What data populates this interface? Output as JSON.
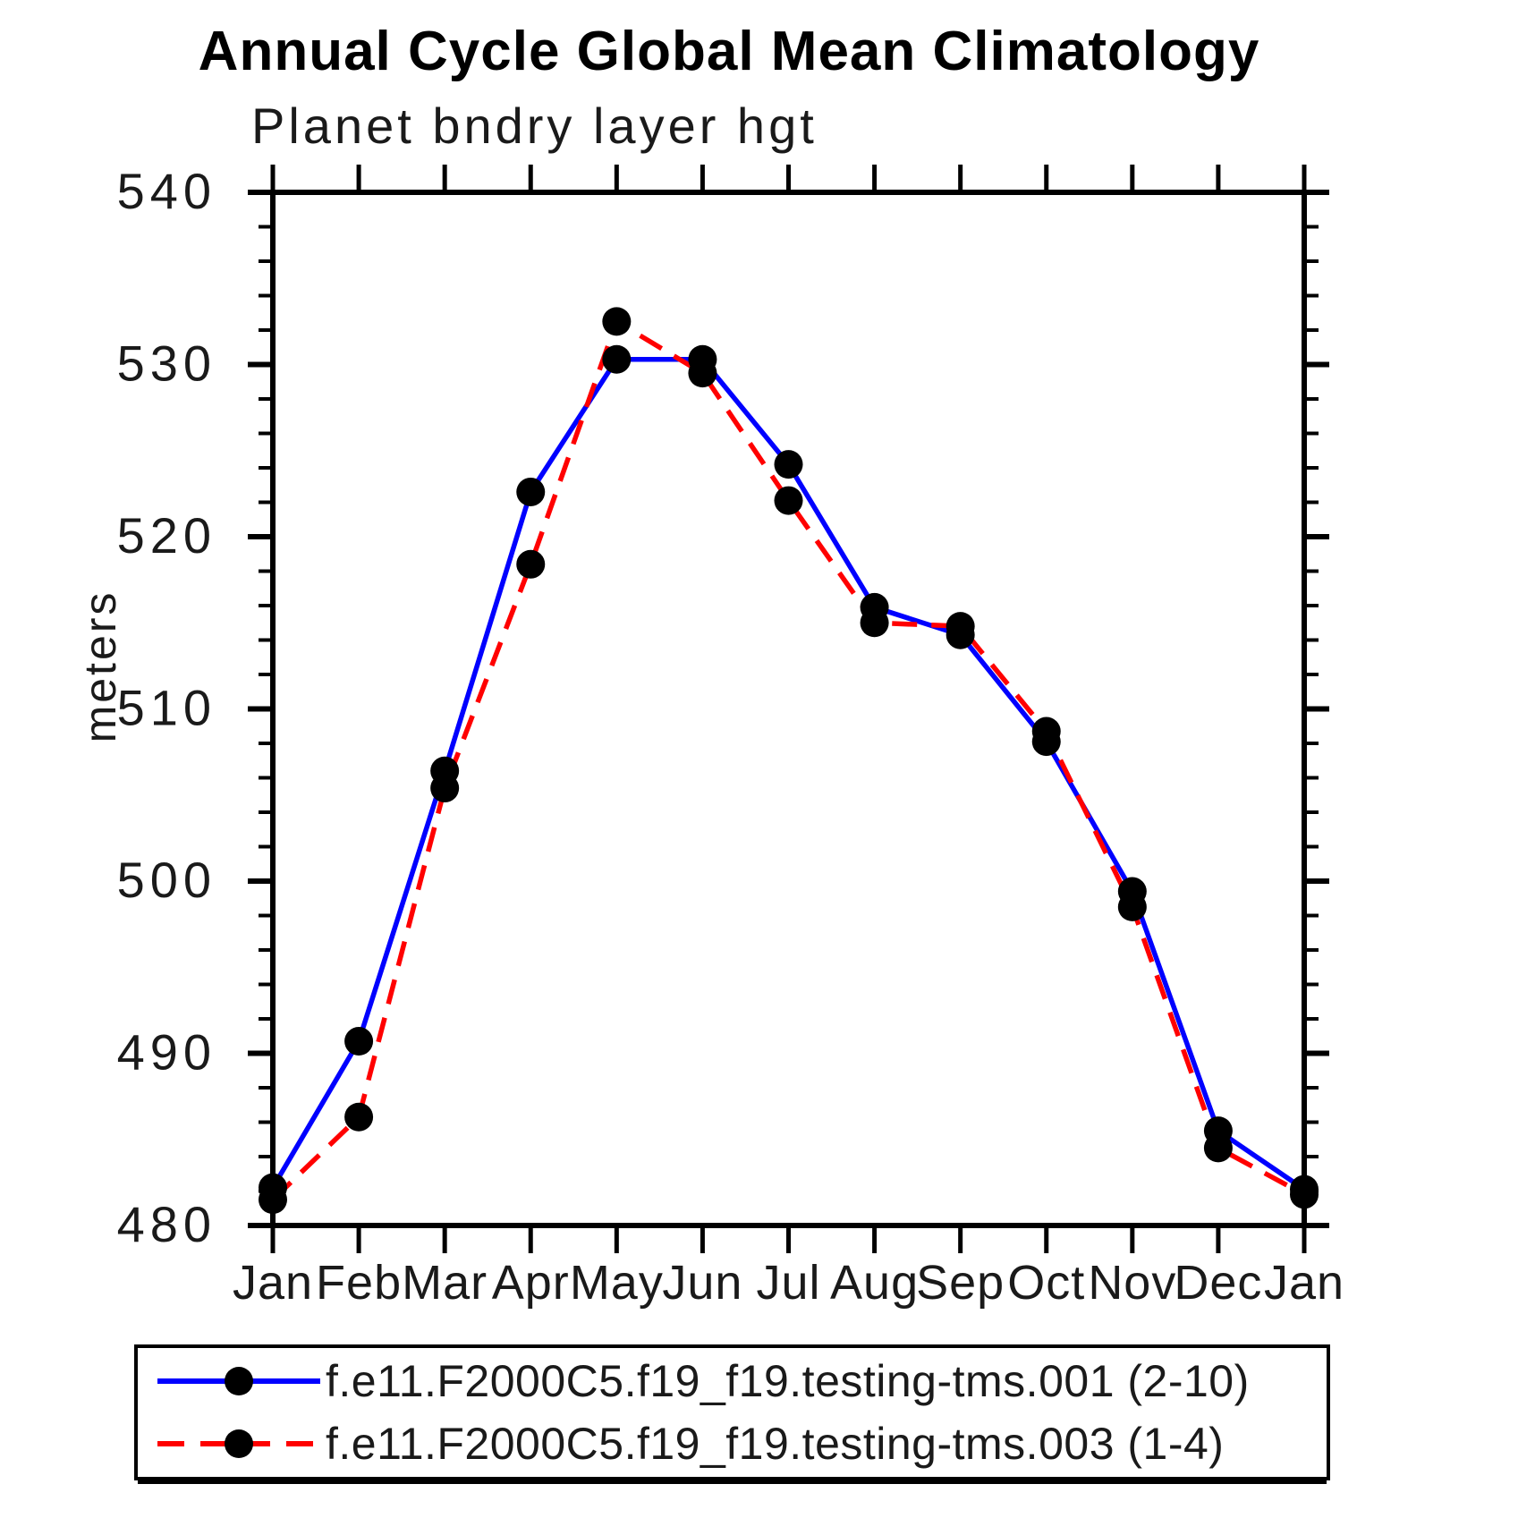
{
  "chart_data": {
    "type": "line",
    "title": "Annual Cycle Global Mean Climatology",
    "subtitle": "Planet bndry layer hgt",
    "ylabel": "meters",
    "ylim": [
      480,
      540
    ],
    "y_major_tick_step": 10,
    "y_minor_tick_step": 2,
    "y_tick_labels": [
      "480",
      "490",
      "500",
      "510",
      "520",
      "530",
      "540"
    ],
    "categories": [
      "Jan",
      "Feb",
      "Mar",
      "Apr",
      "May",
      "Jun",
      "Jul",
      "Aug",
      "Sep",
      "Oct",
      "Nov",
      "Dec",
      "Jan"
    ],
    "grid": false,
    "legend_position": "bottom",
    "marker": "filled-circle",
    "marker_color": "#000000",
    "axis_color": "#000000",
    "series": [
      {
        "name": "f.e11.F2000C5.f19_f19.testing-tms.001 (2-10)",
        "color": "#0000ff",
        "style": "solid",
        "values": [
          482.2,
          490.7,
          506.4,
          522.6,
          530.3,
          530.3,
          524.2,
          515.9,
          514.3,
          508.1,
          499.4,
          485.5,
          482.1
        ]
      },
      {
        "name": "f.e11.F2000C5.f19_f19.testing-tms.003 (1-4)",
        "color": "#ff0000",
        "style": "dashed",
        "values": [
          481.5,
          486.3,
          505.4,
          518.4,
          532.5,
          529.5,
          522.1,
          515.0,
          514.8,
          508.7,
          498.5,
          484.5,
          481.8
        ]
      }
    ]
  }
}
